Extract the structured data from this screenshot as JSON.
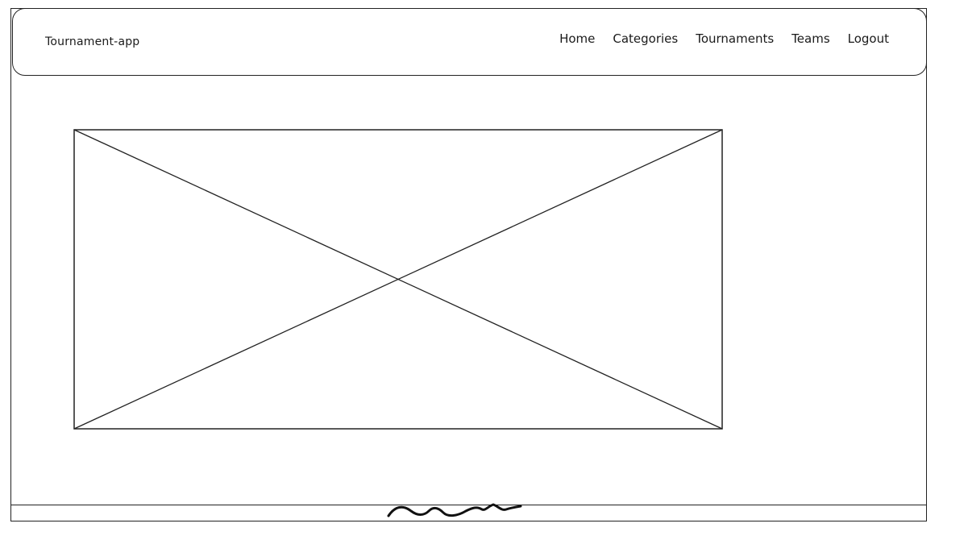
{
  "navbar": {
    "brand": "Tournament-app",
    "links": [
      {
        "label": "Home"
      },
      {
        "label": "Categories"
      },
      {
        "label": "Tournaments"
      },
      {
        "label": "Teams"
      },
      {
        "label": "Logout"
      }
    ]
  },
  "main": {
    "image_placeholder": {
      "icon": "image-placeholder-icon"
    }
  },
  "footer": {
    "mark": "scribble-icon"
  }
}
